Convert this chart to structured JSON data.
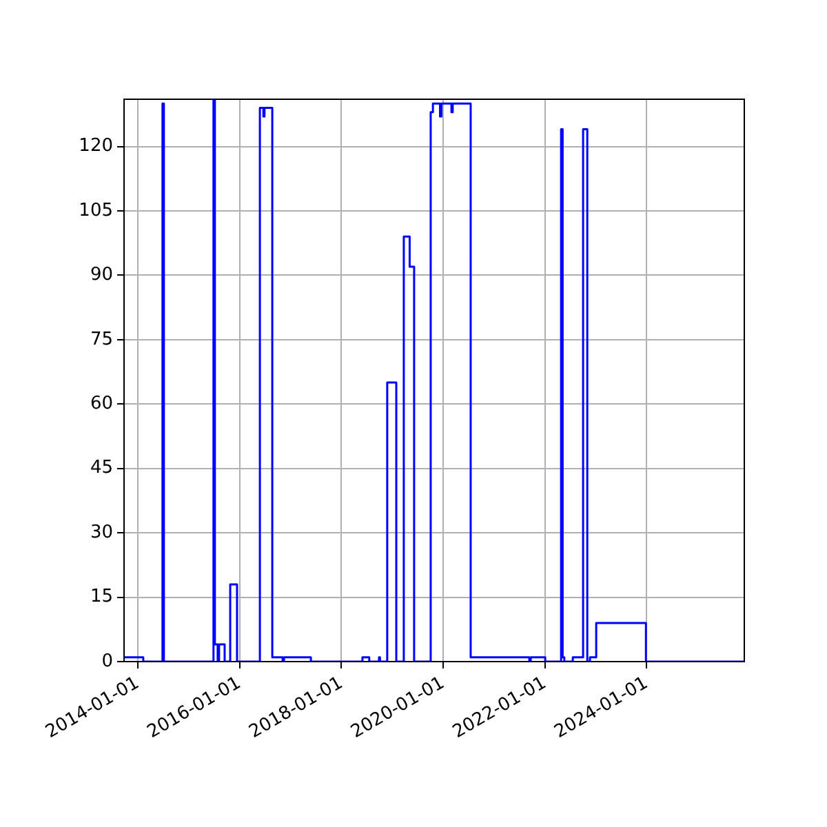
{
  "chart_data": {
    "type": "step",
    "x": [
      "2013-09-24",
      "2014-02-09",
      "2014-06-27",
      "2014-07-07",
      "2015-06-28",
      "2015-07-08",
      "2015-07-28",
      "2015-08-07",
      "2015-09-16",
      "2015-10-26",
      "2015-12-14",
      "2016-05-26",
      "2016-06-20",
      "2016-06-28",
      "2016-08-23",
      "2016-11-05",
      "2016-11-15",
      "2017-05-27",
      "2018-06-01",
      "2018-07-20",
      "2018-09-28",
      "2018-10-05",
      "2018-11-26",
      "2019-01-30",
      "2019-03-25",
      "2019-05-06",
      "2019-06-07",
      "2019-10-04",
      "2019-10-20",
      "2019-12-10",
      "2019-12-20",
      "2020-03-01",
      "2020-03-10",
      "2020-07-17",
      "2021-09-11",
      "2021-09-21",
      "2022-01-03",
      "2022-04-27",
      "2022-05-08",
      "2022-05-20",
      "2022-07-20",
      "2022-10-02",
      "2022-11-01",
      "2022-11-20",
      "2023-01-04",
      "2023-12-27",
      "2025-12-02"
    ],
    "series": [
      {
        "color": "#0000ff",
        "values": [
          1,
          0,
          130,
          0,
          131,
          4,
          0,
          4,
          0,
          18,
          0,
          129,
          127,
          129,
          1,
          0,
          1,
          0,
          1,
          0,
          1,
          0,
          65,
          0,
          99,
          92,
          0,
          128,
          130,
          127,
          130,
          128,
          130,
          1,
          0,
          1,
          0,
          124,
          1,
          0,
          1,
          124,
          0,
          1,
          9,
          0,
          0
        ]
      }
    ],
    "xlim": [
      "2013-09-24",
      "2025-12-02"
    ],
    "xticks": [
      "2014-01-01",
      "2016-01-01",
      "2018-01-01",
      "2020-01-01",
      "2022-01-01",
      "2024-01-01"
    ],
    "ylim": [
      0,
      131
    ],
    "yticks": [
      0,
      15,
      30,
      45,
      60,
      75,
      90,
      105,
      120
    ],
    "grid": true,
    "legend": false,
    "marker": "none",
    "line_style": "solid"
  }
}
